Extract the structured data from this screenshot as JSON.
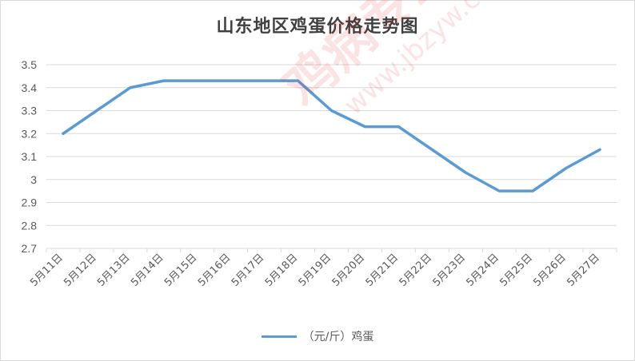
{
  "chart_data": {
    "type": "line",
    "title": "山东地区鸡蛋价格走势图",
    "xlabel": "",
    "ylabel": "",
    "categories": [
      "5月11日",
      "5月12日",
      "5月13日",
      "5月14日",
      "5月15日",
      "5月16日",
      "5月17日",
      "5月18日",
      "5月19日",
      "5月20日",
      "5月21日",
      "5月22日",
      "5月23日",
      "5月24日",
      "5月25日",
      "5月26日",
      "5月27日"
    ],
    "series": [
      {
        "name": "（元/斤）鸡蛋",
        "color": "#5b9bd5",
        "values": [
          3.2,
          3.3,
          3.4,
          3.43,
          3.43,
          3.43,
          3.43,
          3.43,
          3.3,
          3.23,
          3.23,
          3.13,
          3.03,
          2.95,
          2.95,
          3.05,
          3.13
        ]
      }
    ],
    "ylim": [
      2.7,
      3.5
    ],
    "yticks": [
      "3.5",
      "3.4",
      "3.3",
      "3.2",
      "3.1",
      "3",
      "2.9",
      "2.8",
      "2.7"
    ],
    "grid": true,
    "legend_position": "bottom"
  },
  "watermark": {
    "text": "鸡病专业网",
    "url": "www.jbzyw.com",
    "color": "#e02020"
  }
}
